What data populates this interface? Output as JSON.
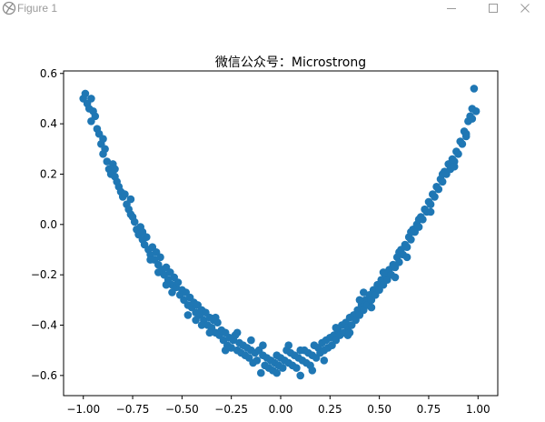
{
  "window": {
    "title": "Figure 1",
    "icons": {
      "app": "figure-app-icon",
      "minimize": "minimize-icon",
      "maximize": "maximize-icon",
      "close": "close-icon"
    }
  },
  "colors": {
    "marker": "#1f77b4",
    "axes": "#000000",
    "background": "#ffffff",
    "titlebar_text": "#9a9a9a"
  },
  "chart_data": {
    "type": "scatter",
    "title": "微信公众号：Microstrong",
    "xlabel": "",
    "ylabel": "",
    "xlim": [
      -1.1,
      1.1
    ],
    "ylim": [
      -0.68,
      0.61
    ],
    "xticks": [
      -1.0,
      -0.75,
      -0.5,
      -0.25,
      0.0,
      0.25,
      0.5,
      0.75,
      1.0
    ],
    "xtick_labels": [
      "−1.00",
      "−0.75",
      "−0.50",
      "−0.25",
      "0.00",
      "0.25",
      "0.50",
      "0.75",
      "1.00"
    ],
    "yticks": [
      -0.6,
      -0.4,
      -0.2,
      0.0,
      0.2,
      0.4,
      0.6
    ],
    "ytick_labels": [
      "−0.6",
      "−0.4",
      "−0.2",
      "0.0",
      "0.2",
      "0.4",
      "0.6"
    ],
    "grid": false,
    "series": [
      {
        "marker_color": "#1f77b4",
        "points": [
          [
            -1.0,
            0.5
          ],
          [
            -0.99,
            0.52
          ],
          [
            -0.98,
            0.48
          ],
          [
            -0.97,
            0.46
          ],
          [
            -0.96,
            0.5
          ],
          [
            -0.95,
            0.45
          ],
          [
            -0.94,
            0.43
          ],
          [
            -0.93,
            0.38
          ],
          [
            -0.92,
            0.36
          ],
          [
            -0.91,
            0.32
          ],
          [
            -0.9,
            0.28
          ],
          [
            -0.89,
            0.3
          ],
          [
            -0.88,
            0.25
          ],
          [
            -0.87,
            0.22
          ],
          [
            -0.86,
            0.2
          ],
          [
            -0.85,
            0.24
          ],
          [
            -0.84,
            0.19
          ],
          [
            -0.83,
            0.17
          ],
          [
            -0.82,
            0.15
          ],
          [
            -0.81,
            0.13
          ],
          [
            -0.8,
            0.11
          ],
          [
            -0.79,
            0.12
          ],
          [
            -0.78,
            0.08
          ],
          [
            -0.77,
            0.06
          ],
          [
            -0.76,
            0.04
          ],
          [
            -0.75,
            0.03
          ],
          [
            -0.74,
            0.01
          ],
          [
            -0.73,
            -0.02
          ],
          [
            -0.72,
            -0.04
          ],
          [
            -0.71,
            -0.01
          ],
          [
            -0.7,
            -0.06
          ],
          [
            -0.69,
            -0.08
          ],
          [
            -0.68,
            -0.05
          ],
          [
            -0.67,
            -0.1
          ],
          [
            -0.66,
            -0.12
          ],
          [
            -0.65,
            -0.09
          ],
          [
            -0.64,
            -0.14
          ],
          [
            -0.63,
            -0.11
          ],
          [
            -0.62,
            -0.16
          ],
          [
            -0.61,
            -0.13
          ],
          [
            -0.6,
            -0.18
          ],
          [
            -0.59,
            -0.2
          ],
          [
            -0.58,
            -0.17
          ],
          [
            -0.57,
            -0.22
          ],
          [
            -0.56,
            -0.19
          ],
          [
            -0.55,
            -0.24
          ],
          [
            -0.54,
            -0.21
          ],
          [
            -0.53,
            -0.25
          ],
          [
            -0.52,
            -0.23
          ],
          [
            -0.51,
            -0.28
          ],
          [
            -0.5,
            -0.26
          ],
          [
            -0.49,
            -0.3
          ],
          [
            -0.48,
            -0.27
          ],
          [
            -0.47,
            -0.32
          ],
          [
            -0.46,
            -0.29
          ],
          [
            -0.45,
            -0.33
          ],
          [
            -0.44,
            -0.31
          ],
          [
            -0.43,
            -0.35
          ],
          [
            -0.42,
            -0.32
          ],
          [
            -0.41,
            -0.36
          ],
          [
            -0.4,
            -0.34
          ],
          [
            -0.39,
            -0.38
          ],
          [
            -0.38,
            -0.35
          ],
          [
            -0.37,
            -0.4
          ],
          [
            -0.36,
            -0.37
          ],
          [
            -0.35,
            -0.41
          ],
          [
            -0.34,
            -0.38
          ],
          [
            -0.33,
            -0.43
          ],
          [
            -0.32,
            -0.39
          ],
          [
            -0.31,
            -0.44
          ],
          [
            -0.3,
            -0.42
          ],
          [
            -0.29,
            -0.46
          ],
          [
            -0.28,
            -0.43
          ],
          [
            -0.27,
            -0.48
          ],
          [
            -0.26,
            -0.45
          ],
          [
            -0.25,
            -0.49
          ],
          [
            -0.24,
            -0.46
          ],
          [
            -0.23,
            -0.44
          ],
          [
            -0.22,
            -0.5
          ],
          [
            -0.21,
            -0.47
          ],
          [
            -0.2,
            -0.51
          ],
          [
            -0.19,
            -0.48
          ],
          [
            -0.18,
            -0.52
          ],
          [
            -0.17,
            -0.49
          ],
          [
            -0.16,
            -0.53
          ],
          [
            -0.15,
            -0.5
          ],
          [
            -0.14,
            -0.55
          ],
          [
            -0.13,
            -0.51
          ],
          [
            -0.12,
            -0.54
          ],
          [
            -0.11,
            -0.5
          ],
          [
            -0.1,
            -0.59
          ],
          [
            -0.09,
            -0.52
          ],
          [
            -0.08,
            -0.56
          ],
          [
            -0.07,
            -0.53
          ],
          [
            -0.06,
            -0.57
          ],
          [
            -0.05,
            -0.54
          ],
          [
            -0.04,
            -0.58
          ],
          [
            -0.03,
            -0.55
          ],
          [
            -0.02,
            -0.52
          ],
          [
            -0.01,
            -0.56
          ],
          [
            0.0,
            -0.53
          ],
          [
            0.01,
            -0.57
          ],
          [
            0.02,
            -0.54
          ],
          [
            0.03,
            -0.5
          ],
          [
            0.04,
            -0.55
          ],
          [
            0.05,
            -0.51
          ],
          [
            0.06,
            -0.56
          ],
          [
            0.07,
            -0.52
          ],
          [
            0.08,
            -0.57
          ],
          [
            0.09,
            -0.53
          ],
          [
            0.1,
            -0.6
          ],
          [
            0.11,
            -0.54
          ],
          [
            0.12,
            -0.5
          ],
          [
            0.13,
            -0.55
          ],
          [
            0.14,
            -0.51
          ],
          [
            0.15,
            -0.56
          ],
          [
            0.16,
            -0.52
          ],
          [
            0.17,
            -0.48
          ],
          [
            0.18,
            -0.53
          ],
          [
            0.19,
            -0.49
          ],
          [
            0.2,
            -0.51
          ],
          [
            0.21,
            -0.47
          ],
          [
            0.22,
            -0.5
          ],
          [
            0.23,
            -0.46
          ],
          [
            0.24,
            -0.49
          ],
          [
            0.25,
            -0.45
          ],
          [
            0.26,
            -0.48
          ],
          [
            0.27,
            -0.44
          ],
          [
            0.28,
            -0.46
          ],
          [
            0.29,
            -0.42
          ],
          [
            0.3,
            -0.44
          ],
          [
            0.31,
            -0.4
          ],
          [
            0.32,
            -0.43
          ],
          [
            0.33,
            -0.39
          ],
          [
            0.34,
            -0.41
          ],
          [
            0.35,
            -0.37
          ],
          [
            0.36,
            -0.4
          ],
          [
            0.37,
            -0.36
          ],
          [
            0.38,
            -0.38
          ],
          [
            0.39,
            -0.34
          ],
          [
            0.4,
            -0.36
          ],
          [
            0.41,
            -0.32
          ],
          [
            0.42,
            -0.34
          ],
          [
            0.43,
            -0.3
          ],
          [
            0.44,
            -0.32
          ],
          [
            0.45,
            -0.28
          ],
          [
            0.46,
            -0.3
          ],
          [
            0.47,
            -0.26
          ],
          [
            0.48,
            -0.28
          ],
          [
            0.49,
            -0.24
          ],
          [
            0.5,
            -0.26
          ],
          [
            0.51,
            -0.22
          ],
          [
            0.52,
            -0.24
          ],
          [
            0.53,
            -0.2
          ],
          [
            0.54,
            -0.22
          ],
          [
            0.55,
            -0.18
          ],
          [
            0.56,
            -0.2
          ],
          [
            0.57,
            -0.16
          ],
          [
            0.58,
            -0.17
          ],
          [
            0.59,
            -0.13
          ],
          [
            0.6,
            -0.15
          ],
          [
            0.61,
            -0.1
          ],
          [
            0.62,
            -0.12
          ],
          [
            0.63,
            -0.08
          ],
          [
            0.64,
            -0.09
          ],
          [
            0.65,
            -0.05
          ],
          [
            0.66,
            -0.06
          ],
          [
            0.67,
            -0.02
          ],
          [
            0.68,
            -0.03
          ],
          [
            0.69,
            0.0
          ],
          [
            0.7,
            -0.01
          ],
          [
            0.71,
            0.03
          ],
          [
            0.72,
            0.02
          ],
          [
            0.73,
            0.06
          ],
          [
            0.74,
            0.05
          ],
          [
            0.75,
            0.09
          ],
          [
            0.76,
            0.08
          ],
          [
            0.77,
            0.12
          ],
          [
            0.78,
            0.11
          ],
          [
            0.79,
            0.15
          ],
          [
            0.8,
            0.14
          ],
          [
            0.81,
            0.18
          ],
          [
            0.82,
            0.17
          ],
          [
            0.83,
            0.21
          ],
          [
            0.84,
            0.2
          ],
          [
            0.85,
            0.24
          ],
          [
            0.86,
            0.22
          ],
          [
            0.87,
            0.26
          ],
          [
            0.88,
            0.25
          ],
          [
            0.89,
            0.29
          ],
          [
            0.9,
            0.28
          ],
          [
            0.91,
            0.33
          ],
          [
            0.92,
            0.32
          ],
          [
            0.93,
            0.37
          ],
          [
            0.94,
            0.36
          ],
          [
            0.95,
            0.41
          ],
          [
            0.96,
            0.43
          ],
          [
            0.97,
            0.46
          ],
          [
            0.98,
            0.54
          ],
          [
            0.99,
            0.45
          ],
          [
            -0.96,
            0.41
          ],
          [
            -0.9,
            0.34
          ],
          [
            -0.84,
            0.22
          ],
          [
            -0.76,
            0.1
          ],
          [
            -0.7,
            -0.03
          ],
          [
            -0.62,
            -0.19
          ],
          [
            -0.55,
            -0.27
          ],
          [
            -0.47,
            -0.36
          ],
          [
            -0.4,
            -0.4
          ],
          [
            -0.33,
            -0.37
          ],
          [
            -0.28,
            -0.5
          ],
          [
            -0.22,
            -0.43
          ],
          [
            -0.15,
            -0.46
          ],
          [
            -0.09,
            -0.48
          ],
          [
            -0.02,
            -0.59
          ],
          [
            0.04,
            -0.48
          ],
          [
            0.1,
            -0.5
          ],
          [
            0.16,
            -0.58
          ],
          [
            0.22,
            -0.54
          ],
          [
            0.28,
            -0.41
          ],
          [
            0.34,
            -0.44
          ],
          [
            0.4,
            -0.3
          ],
          [
            0.46,
            -0.33
          ],
          [
            0.52,
            -0.19
          ],
          [
            0.58,
            -0.21
          ],
          [
            0.64,
            -0.13
          ],
          [
            0.7,
            0.02
          ],
          [
            0.76,
            0.05
          ],
          [
            0.82,
            0.2
          ],
          [
            0.88,
            0.23
          ],
          [
            0.94,
            0.35
          ],
          [
            0.97,
            0.42
          ],
          [
            -0.43,
            -0.38
          ],
          [
            -0.36,
            -0.43
          ],
          [
            0.35,
            -0.43
          ],
          [
            0.42,
            -0.27
          ],
          [
            -0.58,
            -0.24
          ],
          [
            0.6,
            -0.11
          ],
          [
            -0.66,
            -0.14
          ],
          [
            0.66,
            -0.03
          ]
        ]
      }
    ]
  }
}
